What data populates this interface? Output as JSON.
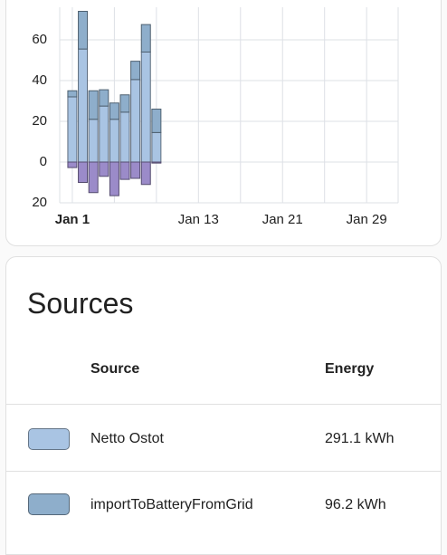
{
  "chart_data": {
    "type": "bar",
    "stacked": true,
    "x": [
      1,
      2,
      3,
      4,
      5,
      6,
      7,
      8,
      9
    ],
    "series": [
      {
        "name": "Netto Ostot",
        "color": "#a9c4e3",
        "values": [
          32,
          55.5,
          21,
          27.5,
          21,
          24.5,
          40.5,
          54,
          14.5
        ]
      },
      {
        "name": "importToBatteryFromGrid",
        "color": "#8eaecb",
        "values": [
          3,
          18.5,
          14,
          8,
          8,
          8.5,
          9,
          13.5,
          11.5
        ]
      },
      {
        "color": "#9b8bc9",
        "values": [
          -2.7,
          -10,
          -15,
          -7,
          -16.5,
          -8.5,
          -8,
          -11,
          -0.5
        ]
      }
    ],
    "xlim": [
      -0.2,
      32
    ],
    "xticks": [
      {
        "value": 1,
        "label": "Jan 1"
      },
      {
        "value": 13,
        "label": "Jan 13"
      },
      {
        "value": 21,
        "label": "Jan 21"
      },
      {
        "value": 29,
        "label": "Jan 29"
      }
    ],
    "xminor": [
      5,
      9,
      17,
      25
    ],
    "ylim": [
      -20,
      76
    ],
    "yticks": [
      60,
      40,
      20,
      0,
      {
        "value": -20,
        "label": "20"
      }
    ],
    "grid": true
  },
  "sources": {
    "title": "Sources",
    "headers": [
      "Source",
      "Energy"
    ],
    "energy": [
      "291.1 kWh",
      "96.2 kWh"
    ]
  }
}
